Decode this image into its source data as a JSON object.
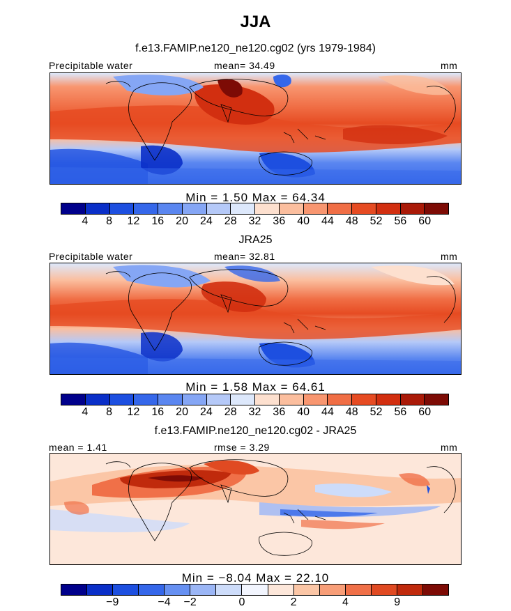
{
  "title": "JJA",
  "panels": [
    {
      "subtitle": "f.e13.FAMIP.ne120_ne120.cg02 (yrs 1979-1984)",
      "left_label": "Precipitable water",
      "center_label": "mean=  34.49",
      "right_label": "mm",
      "stats": "Min =    1.50  Max =   64.34",
      "ticks": [
        "4",
        "8",
        "12",
        "16",
        "20",
        "24",
        "28",
        "32",
        "36",
        "40",
        "44",
        "48",
        "52",
        "56",
        "60"
      ]
    },
    {
      "subtitle": "JRA25",
      "left_label": "Precipitable water",
      "center_label": "mean=  32.81",
      "right_label": "mm",
      "stats": "Min =    1.58  Max =   64.61",
      "ticks": [
        "4",
        "8",
        "12",
        "16",
        "20",
        "24",
        "28",
        "32",
        "36",
        "40",
        "44",
        "48",
        "52",
        "56",
        "60"
      ]
    },
    {
      "subtitle": "f.e13.FAMIP.ne120_ne120.cg02 - JRA25",
      "left_label": "mean =    1.41",
      "center_label": "rmse =    3.29",
      "right_label": "mm",
      "stats": "Min =  −8.04  Max =   22.10",
      "ticks": [
        "−9",
        "−4",
        "−2",
        "0",
        "2",
        "4",
        "9"
      ]
    }
  ],
  "colors": {
    "abs_scale": [
      "#00008b",
      "#0a2fc8",
      "#1d4fe0",
      "#3567ea",
      "#5a86f0",
      "#85a6f5",
      "#b5c9f8",
      "#dde8fb",
      "#fde0cf",
      "#fbbe9e",
      "#f89670",
      "#f06e45",
      "#e64b22",
      "#d22f10",
      "#aa1a08",
      "#7d0b05"
    ],
    "diff_scale": [
      "#00008b",
      "#0a2fc8",
      "#1d4fe0",
      "#3567ea",
      "#6690f2",
      "#9bb6f6",
      "#cddcfa",
      "#f2f5fe",
      "#fde7da",
      "#fbc6a6",
      "#f89e78",
      "#f07048",
      "#e04a22",
      "#c02a0c",
      "#7d0b05"
    ]
  }
}
